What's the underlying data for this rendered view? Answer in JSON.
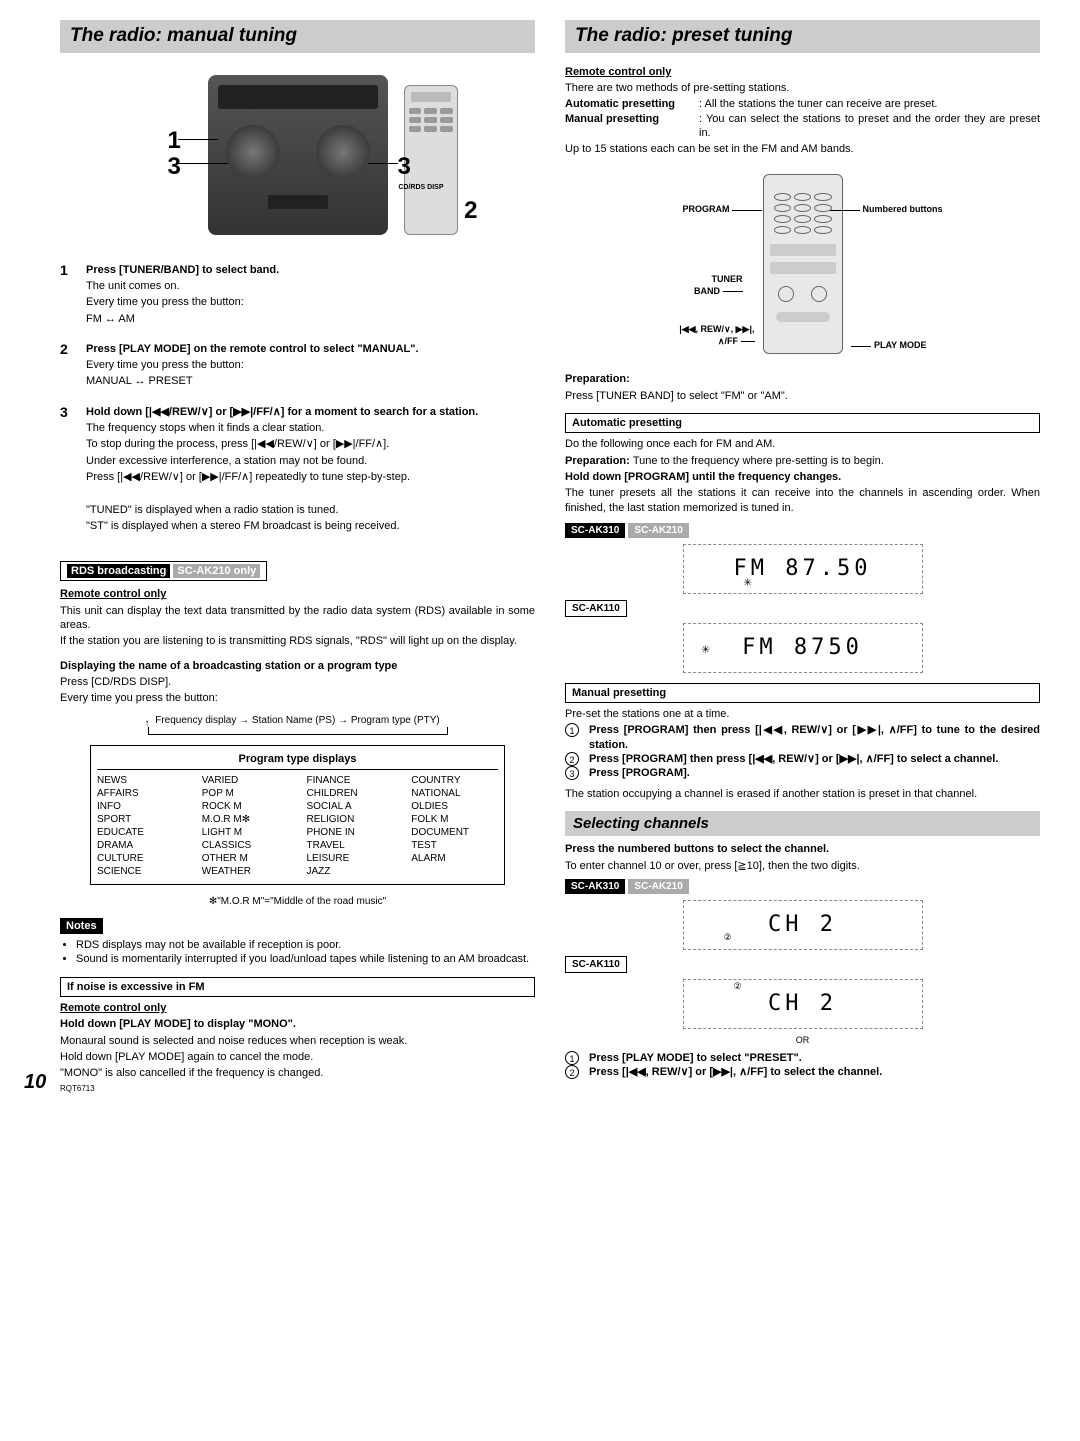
{
  "left": {
    "title": "The radio: manual tuning",
    "cd_label": "CD/RDS DISP",
    "step_labels": {
      "n1": "1",
      "n2": "2",
      "n3a": "3",
      "n3b": "3"
    },
    "steps": [
      {
        "n": "1",
        "head": "Press [TUNER/BAND] to select band.",
        "lines": [
          "The unit comes on.",
          "Every time you press the button:",
          "FM ↔ AM"
        ]
      },
      {
        "n": "2",
        "head": "Press [PLAY MODE] on the remote control to select \"MANUAL\".",
        "lines": [
          "Every time you press the button:",
          "MANUAL ↔ PRESET"
        ]
      },
      {
        "n": "3",
        "head": "Hold down [|◀◀/REW/∨] or [▶▶|/FF/∧] for a moment to search for a station.",
        "lines": [
          "The frequency stops when it finds a clear station.",
          "To stop during the process, press [|◀◀/REW/∨] or [▶▶|/FF/∧].",
          "Under excessive interference, a station may not be found.",
          "Press [|◀◀/REW/∨] or [▶▶|/FF/∧] repeatedly to tune step-by-step.",
          "",
          "\"TUNED\" is displayed when a radio station is tuned.",
          "\"ST\" is displayed when a stereo FM broadcast is being received."
        ]
      }
    ],
    "rds": {
      "box_label": "RDS broadcasting",
      "box_tag": "SC-AK210 only",
      "remote_only": "Remote control only",
      "p1": "This unit can display the text data transmitted by the radio data system (RDS) available in some areas.",
      "p2": "If the station you are listening to is transmitting RDS signals, \"RDS\" will light up on the display.",
      "disp_head": "Displaying the name of a broadcasting station or a program type",
      "disp_line": "Press [CD/RDS DISP].",
      "disp_every": "Every time you press the button:",
      "flow": "Frequency display → Station Name (PS) → Program type (PTY)",
      "table_head": "Program type displays",
      "cols": [
        [
          "NEWS",
          "AFFAIRS",
          "INFO",
          "SPORT",
          "EDUCATE",
          "DRAMA",
          "CULTURE",
          "SCIENCE"
        ],
        [
          "VARIED",
          "POP M",
          "ROCK M",
          "M.O.R M✻",
          "LIGHT M",
          "CLASSICS",
          "OTHER M",
          "WEATHER"
        ],
        [
          "FINANCE",
          "CHILDREN",
          "SOCIAL A",
          "RELIGION",
          "PHONE IN",
          "TRAVEL",
          "LEISURE",
          "JAZZ"
        ],
        [
          "COUNTRY",
          "NATIONAL",
          "OLDIES",
          "FOLK M",
          "DOCUMENT",
          "TEST",
          "ALARM"
        ]
      ],
      "footnote": "✻\"M.O.R M\"=\"Middle of the road music\"",
      "notes_label": "Notes",
      "notes": [
        "RDS displays may not be available if reception is poor.",
        "Sound is momentarily interrupted if you load/unload tapes while listening to an AM broadcast."
      ],
      "noise_head": "If noise is excessive in FM",
      "remote_only2": "Remote control only",
      "mono_head": "Hold down [PLAY MODE] to display \"MONO\".",
      "mono_p": "Monaural sound is selected and noise reduces when reception is weak.",
      "mono_p2": "Hold down [PLAY MODE] again to cancel the mode.",
      "mono_p3": "\"MONO\" is also cancelled if the frequency is changed."
    },
    "page_num": "10",
    "doc_code": "RQT6713"
  },
  "right": {
    "title": "The radio: preset tuning",
    "remote_only": "Remote control only",
    "intro": "There are two methods of pre-setting stations.",
    "auto_label": "Automatic presetting",
    "auto_desc": ": All the stations the tuner can receive are preset.",
    "manual_label": "Manual presetting",
    "manual_desc": ": You can select the stations to preset and the order they are preset in.",
    "upto": "Up to 15 stations each can be set in the FM and AM bands.",
    "callouts": {
      "program": "PROGRAM",
      "numbered": "Numbered buttons",
      "tuner": "TUNER BAND",
      "rew": "|◀◀, REW/∨, ▶▶|, ∧/FF",
      "playmode": "PLAY MODE"
    },
    "prep_head": "Preparation:",
    "prep_text": "Press [TUNER BAND] to select \"FM\" or \"AM\".",
    "auto_box": "Automatic presetting",
    "auto_do": "Do the following once each for FM and AM.",
    "auto_prep": "Preparation: ",
    "auto_prep_text": "Tune to the frequency where pre-setting is to begin.",
    "auto_hold": "Hold down [PROGRAM] until the frequency changes.",
    "auto_p": "The tuner presets all the stations it can receive into the channels in ascending order. When finished, the last station memorized is tuned in.",
    "models": {
      "m1": "SC-AK310",
      "m2": "SC-AK210",
      "m3": "SC-AK110"
    },
    "lcd1": "FM  87.50",
    "lcd2": "FM  8750",
    "manual_box": "Manual presetting",
    "manual_intro": "Pre-set the stations one at a time.",
    "manual_steps": [
      "Press [PROGRAM] then press [|◀◀, REW/∨] or [▶▶|, ∧/FF] to tune to the desired station.",
      "Press [PROGRAM] then press [|◀◀, REW/∨] or [▶▶|, ∧/FF] to select a channel.",
      "Press [PROGRAM]."
    ],
    "manual_note": "The station occupying a channel is erased if another station is preset in that channel.",
    "select_title": "Selecting channels",
    "sel_head": "Press the numbered buttons to select the channel.",
    "sel_p": "To enter channel 10 or over, press [≧10], then the two digits.",
    "lcd3": "CH  2",
    "lcd4": "CH  2",
    "or": "OR",
    "sel_steps": [
      "Press [PLAY MODE] to select \"PRESET\".",
      "Press [|◀◀, REW/∨] or [▶▶|, ∧/FF] to select the channel."
    ]
  }
}
